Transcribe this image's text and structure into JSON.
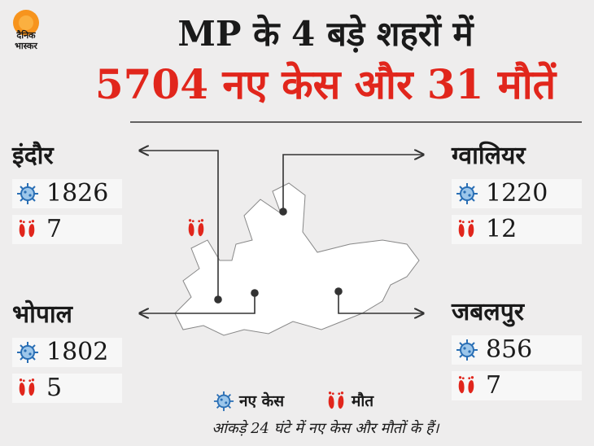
{
  "header": {
    "logo": [
      "दैनिक",
      "भास्कर"
    ],
    "title": "MP के 4 बड़े शहरों में",
    "subtitle": "5704 नए केस और 31 मौतें"
  },
  "cities": [
    {
      "name": "इंदौर",
      "cases": 1826,
      "deaths": 7
    },
    {
      "name": "ग्वालियर",
      "cases": 1220,
      "deaths": 12
    },
    {
      "name": "भोपाल",
      "cases": 1802,
      "deaths": 5
    },
    {
      "name": "जबलपुर",
      "cases": 856,
      "deaths": 7
    }
  ],
  "legend": [
    "नए केस",
    "मौत"
  ],
  "footer": {
    "note": "आंकड़े 24 घंटे में नए केस और मौतों के हैं।"
  }
}
